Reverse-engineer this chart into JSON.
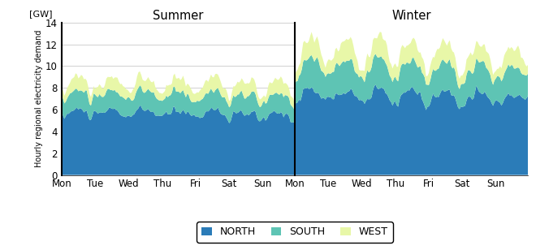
{
  "summer_title": "Summer",
  "winter_title": "Winter",
  "ylabel": "Hourly regional electricity demand",
  "yunits": "[GW]",
  "ylim": [
    0,
    14
  ],
  "yticks": [
    0,
    2,
    4,
    6,
    8,
    10,
    12,
    14
  ],
  "day_labels": [
    "Mon",
    "Tue",
    "Wed",
    "Thu",
    "Fri",
    "Sat",
    "Sun"
  ],
  "legend_labels": [
    "NORTH",
    "SOUTH",
    "WEST"
  ],
  "north_color": "#2b7cb8",
  "south_color": "#5ec4b4",
  "west_color": "#e8f7a8",
  "figsize": [
    6.6,
    3.08
  ],
  "dpi": 100
}
